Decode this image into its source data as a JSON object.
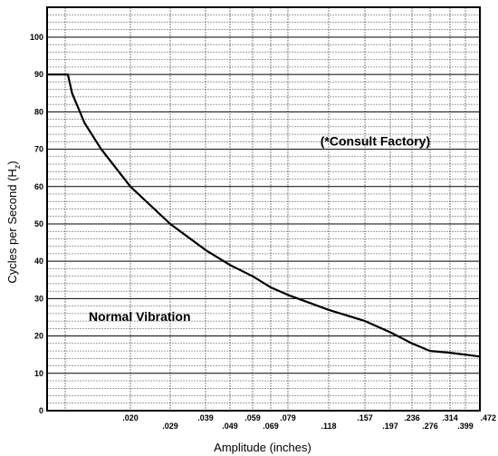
{
  "chart_data": {
    "type": "line",
    "xlabel": "Amplitude (inches)",
    "ylabel": "Cycles per Second (H",
    "ylabel_sub": "z",
    "ylabel_close": ")",
    "ylim": [
      0,
      108
    ],
    "y_ticks": [
      0,
      10,
      20,
      30,
      40,
      50,
      60,
      70,
      80,
      90,
      100
    ],
    "y_tick_labels": [
      "0",
      "10",
      "20",
      "30",
      "40",
      "50",
      "60",
      "70",
      "80",
      "90",
      "100"
    ],
    "xlim": [
      0,
      0.472
    ],
    "x_ticks": [
      0.02,
      0.029,
      0.039,
      0.049,
      0.059,
      0.069,
      0.079,
      0.118,
      0.157,
      0.197,
      0.236,
      0.276,
      0.314,
      0.399,
      0.472
    ],
    "x_tick_labels": [
      ".020",
      ".029",
      ".039",
      ".049",
      ".059",
      ".069",
      ".079",
      ".118",
      ".157",
      ".197",
      ".236",
      ".276",
      ".314",
      ".399",
      ".472"
    ],
    "grid": true,
    "series": [
      {
        "x": [
          0,
          0.005,
          0.006,
          0.009,
          0.013,
          0.02,
          0.029,
          0.039,
          0.049,
          0.059,
          0.069,
          0.079,
          0.118,
          0.157,
          0.197,
          0.236,
          0.276,
          0.314,
          0.399,
          0.472
        ],
        "y": [
          90,
          90,
          85,
          77,
          70,
          60,
          50,
          43,
          39,
          36,
          33,
          31,
          27,
          24,
          21,
          18,
          16,
          15.5,
          15,
          14.5
        ]
      }
    ],
    "annotations": [
      {
        "text": "(*Consult Factory)",
        "x": 0.11,
        "y": 71
      },
      {
        "text": "Normal Vibration",
        "x": 0.01,
        "y": 24
      }
    ]
  }
}
